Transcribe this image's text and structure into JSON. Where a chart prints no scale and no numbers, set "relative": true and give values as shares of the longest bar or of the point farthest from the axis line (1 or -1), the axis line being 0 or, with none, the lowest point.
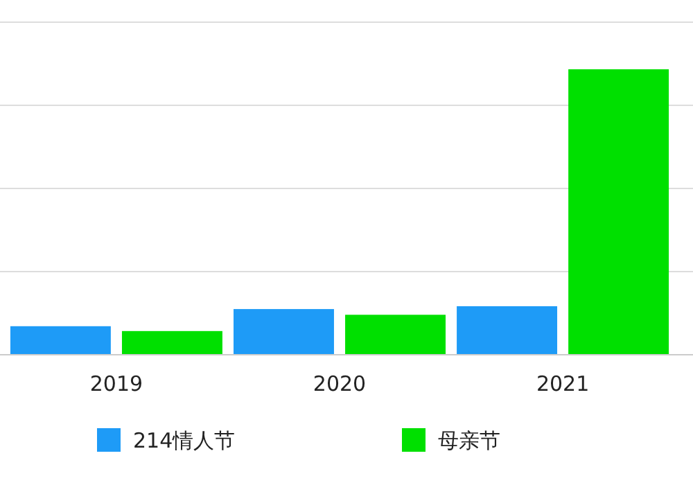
{
  "chart_data": {
    "type": "bar",
    "relative": true,
    "categories": [
      "2019",
      "2020",
      "2021"
    ],
    "series": [
      {
        "name": "214情人节",
        "color": "#1e9bf7",
        "values": [
          0.1,
          0.16,
          0.17
        ]
      },
      {
        "name": "母亲节",
        "color": "#00e000",
        "values": [
          0.083,
          0.14,
          1
        ]
      }
    ],
    "grid": "y",
    "legend": "bottom"
  }
}
